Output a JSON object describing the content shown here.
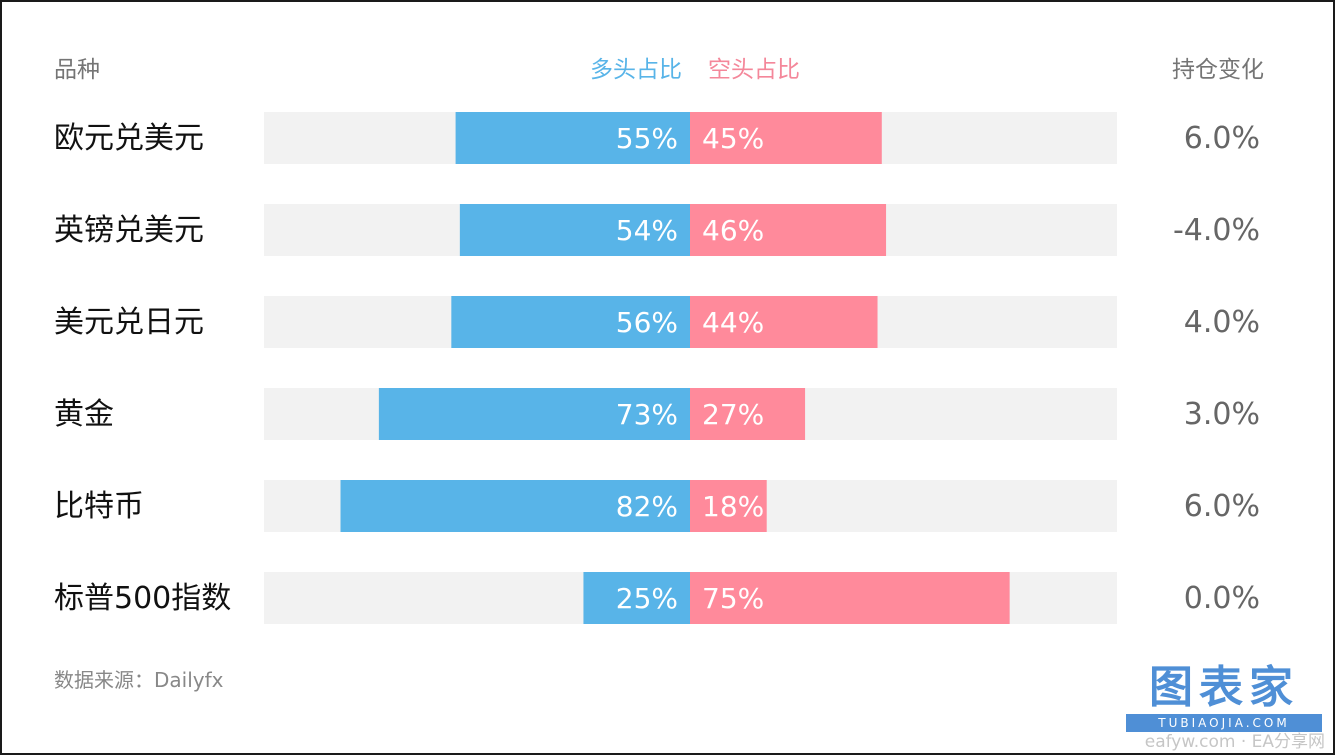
{
  "chart_data": {
    "type": "bar",
    "headers": {
      "category": "品种",
      "long": "多头占比",
      "short": "空头占比",
      "change": "持仓变化"
    },
    "categories": [
      "欧元兑美元",
      "英镑兑美元",
      "美元兑日元",
      "黄金",
      "比特币",
      "标普500指数"
    ],
    "series": [
      {
        "name": "多头占比",
        "values": [
          55,
          54,
          56,
          73,
          82,
          25
        ],
        "labels": [
          "55%",
          "54%",
          "56%",
          "73%",
          "82%",
          "25%"
        ]
      },
      {
        "name": "空头占比",
        "values": [
          45,
          46,
          44,
          27,
          18,
          75
        ],
        "labels": [
          "45%",
          "46%",
          "44%",
          "27%",
          "18%",
          "75%"
        ]
      }
    ],
    "change": [
      "6.0%",
      "-4.0%",
      "4.0%",
      "3.0%",
      "6.0%",
      "0.0%"
    ],
    "xlim": [
      0,
      100
    ],
    "colors": {
      "long": "#58b4e8",
      "short": "#ff8a9b",
      "track": "#f2f2f2"
    }
  },
  "source": "数据来源：Dailyfx",
  "watermark": {
    "title": "图表家",
    "url": "TUBIAOJIA.COM",
    "site": "eafyw.com · EA分享网"
  }
}
